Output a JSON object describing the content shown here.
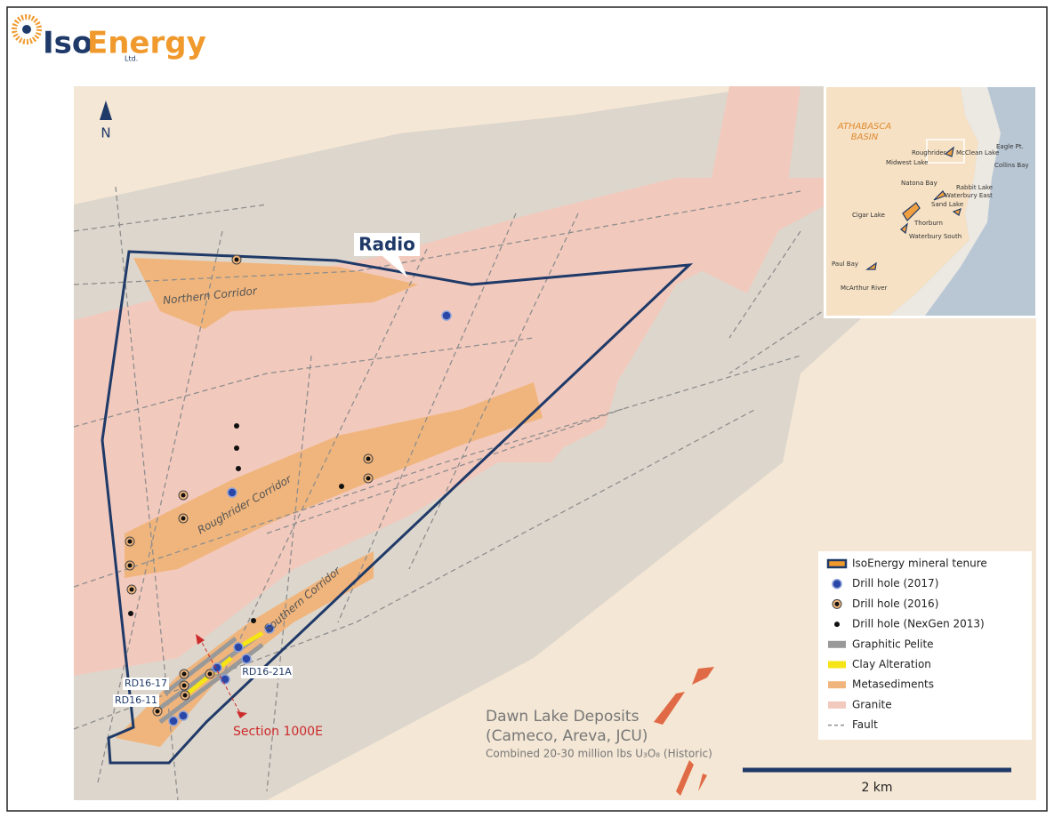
{
  "header": {
    "logo": [
      "Iso",
      "Energy"
    ],
    "logo_sub": "Ltd."
  },
  "map": {
    "north": "N",
    "project": "Radio",
    "corridors": [
      "Northern Corridor",
      "Roughrider Corridor",
      "Southern Corridor"
    ],
    "holes": [
      "RD16-17",
      "RD16-11",
      "RD16-21A"
    ],
    "section": "Section 1000E",
    "deposit": {
      "name": "Dawn Lake Deposits",
      "owners": "(Cameco, Areva, JCU)",
      "resource": "Combined 20-30 million lbs U₃O₈ (Historic)"
    },
    "scale": "2 km"
  },
  "legend": [
    "IsoEnergy mineral tenure",
    "Drill hole (2017)",
    "Drill hole (2016)",
    "Drill hole (NexGen 2013)",
    "Graphitic Pelite",
    "Clay Alteration",
    "Metasediments",
    "Granite",
    "Fault"
  ],
  "inset": {
    "region": [
      "ATHABASCA",
      "BASIN"
    ],
    "places": [
      "Roughrider",
      "Midwest Lake",
      "McClean Lake",
      "Eagle Pt.",
      "Collins Bay",
      "Rabbit Lake",
      "Natona Bay",
      "Sand Lake",
      "Waterbury East",
      "Cigar Lake",
      "Thorburn",
      "Waterbury South",
      "Paul Bay",
      "McArthur River"
    ]
  }
}
